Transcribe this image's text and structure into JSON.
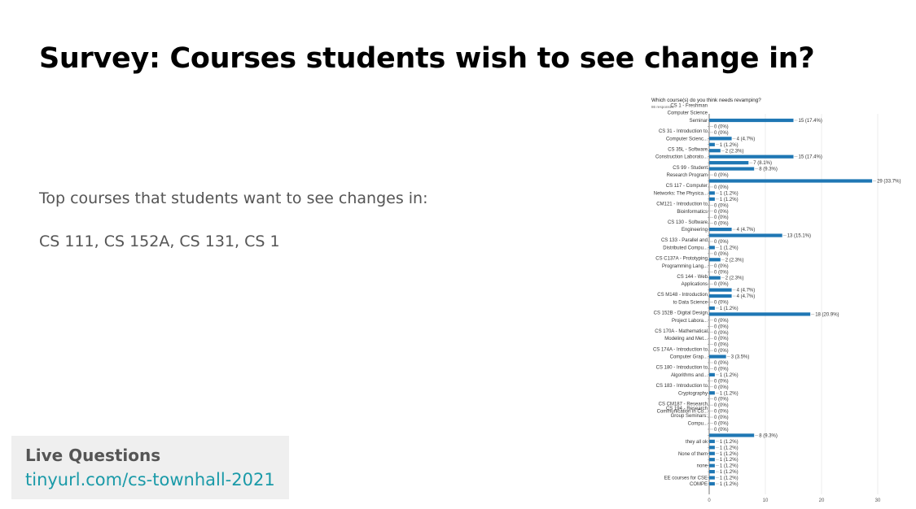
{
  "slide": {
    "title": "Survey: Courses students wish to see change in?",
    "line1": "Top courses that students want to see changes in:",
    "line2": "CS 111, CS 152A, CS 131, CS 1"
  },
  "live_box": {
    "heading": "Live Questions",
    "link": "tinyurl.com/cs-townhall-2021"
  },
  "colors": {
    "bar": "#1f77b4",
    "title": "#000000",
    "body_text": "#555555",
    "link": "#1a9aa8",
    "box_bg": "#efefef"
  },
  "chart_data": {
    "type": "bar",
    "orientation": "horizontal",
    "title": "Which course(s) do you think needs revamping?",
    "subtitle": "86 responses",
    "xlim": [
      0,
      30
    ],
    "xticks": [
      0,
      10,
      20,
      30
    ],
    "grid": true,
    "legend": "none",
    "label_lines": [
      {
        "row": 0,
        "lines": [
          "CS 1 - Freshman",
          "Computer Science",
          "Seminar"
        ]
      },
      {
        "row": 3,
        "lines": [
          "CS 31 - Introduction to",
          "Computer Scienc..."
        ]
      },
      {
        "row": 6,
        "lines": [
          "CS 35L - Software",
          "Construction Laborato..."
        ]
      },
      {
        "row": 9,
        "lines": [
          "CS 99 - Student",
          "Research Program"
        ]
      },
      {
        "row": 12,
        "lines": [
          "CS 117 - Computer",
          "Networks: The Physica..."
        ]
      },
      {
        "row": 15,
        "lines": [
          "CM121 - Introduction to",
          "Bioinformatics"
        ]
      },
      {
        "row": 18,
        "lines": [
          "CS 130 - Software",
          "Engineering"
        ]
      },
      {
        "row": 21,
        "lines": [
          "CS 133 - Parallel and",
          "Distributed Compu..."
        ]
      },
      {
        "row": 24,
        "lines": [
          "CS C137A - Prototyping",
          "Programming Lang..."
        ]
      },
      {
        "row": 27,
        "lines": [
          "CS 144 - Web",
          "Applications"
        ]
      },
      {
        "row": 30,
        "lines": [
          "CS M148 - Introduction",
          "to Data Science"
        ]
      },
      {
        "row": 33,
        "lines": [
          "CS 152B - Digital Design",
          "Project Labora..."
        ]
      },
      {
        "row": 36,
        "lines": [
          "CS 170A - Mathematical",
          "Modeling and Met..."
        ]
      },
      {
        "row": 39,
        "lines": [
          "CS 174A - Introduction to",
          "Computer Grap..."
        ]
      },
      {
        "row": 42,
        "lines": [
          "CS 180 - Introduction to",
          "Algorithms and..."
        ]
      },
      {
        "row": 45,
        "lines": [
          "CS 183 - Introduction to",
          "Cryptography"
        ]
      },
      {
        "row": 48,
        "lines": [
          "CS CM187 - Research",
          "Communication in Co..."
        ]
      },
      {
        "row": 50,
        "lines": [
          "CS 194 - Research",
          "Group Seminars:",
          "Compu..."
        ]
      },
      {
        "row": 53,
        "lines": [
          "they all ok"
        ]
      },
      {
        "row": 55,
        "lines": [
          "None of them"
        ]
      },
      {
        "row": 57,
        "lines": [
          "none"
        ]
      },
      {
        "row": 59,
        "lines": [
          "EE courses for CSE"
        ]
      },
      {
        "row": 60,
        "lines": [
          "COMPE"
        ]
      }
    ],
    "values": [
      15,
      0,
      0,
      4,
      1,
      2,
      15,
      7,
      8,
      0,
      29,
      0,
      1,
      1,
      0,
      0,
      0,
      0,
      4,
      13,
      0,
      1,
      0,
      2,
      0,
      0,
      2,
      0,
      4,
      4,
      0,
      1,
      18,
      0,
      0,
      0,
      0,
      0,
      0,
      3,
      0,
      0,
      1,
      0,
      0,
      1,
      0,
      0,
      0,
      0,
      0,
      0,
      8,
      1,
      1,
      1,
      1,
      1,
      1,
      1,
      1
    ],
    "value_labels": [
      "15 (17.4%)",
      "0 (0%)",
      "0 (0%)",
      "4 (4.7%)",
      "1 (1.2%)",
      "2 (2.3%)",
      "15 (17.4%)",
      "7 (8.1%)",
      "8 (9.3%)",
      "0 (0%)",
      "29 (33.7%)",
      "0 (0%)",
      "1 (1.2%)",
      "1 (1.2%)",
      "0 (0%)",
      "0 (0%)",
      "0 (0%)",
      "0 (0%)",
      "4 (4.7%)",
      "13 (15.1%)",
      "0 (0%)",
      "1 (1.2%)",
      "0 (0%)",
      "2 (2.3%)",
      "0 (0%)",
      "0 (0%)",
      "2 (2.3%)",
      "0 (0%)",
      "4 (4.7%)",
      "4 (4.7%)",
      "0 (0%)",
      "1 (1.2%)",
      "18 (20.9%)",
      "0 (0%)",
      "0 (0%)",
      "0 (0%)",
      "0 (0%)",
      "0 (0%)",
      "0 (0%)",
      "3 (3.5%)",
      "0 (0%)",
      "0 (0%)",
      "1 (1.2%)",
      "0 (0%)",
      "0 (0%)",
      "1 (1.2%)",
      "0 (0%)",
      "0 (0%)",
      "0 (0%)",
      "0 (0%)",
      "0 (0%)",
      "0 (0%)",
      "8 (9.3%)",
      "1 (1.2%)",
      "1 (1.2%)",
      "1 (1.2%)",
      "1 (1.2%)",
      "1 (1.2%)",
      "1 (1.2%)",
      "1 (1.2%)",
      "1 (1.2%)"
    ]
  }
}
